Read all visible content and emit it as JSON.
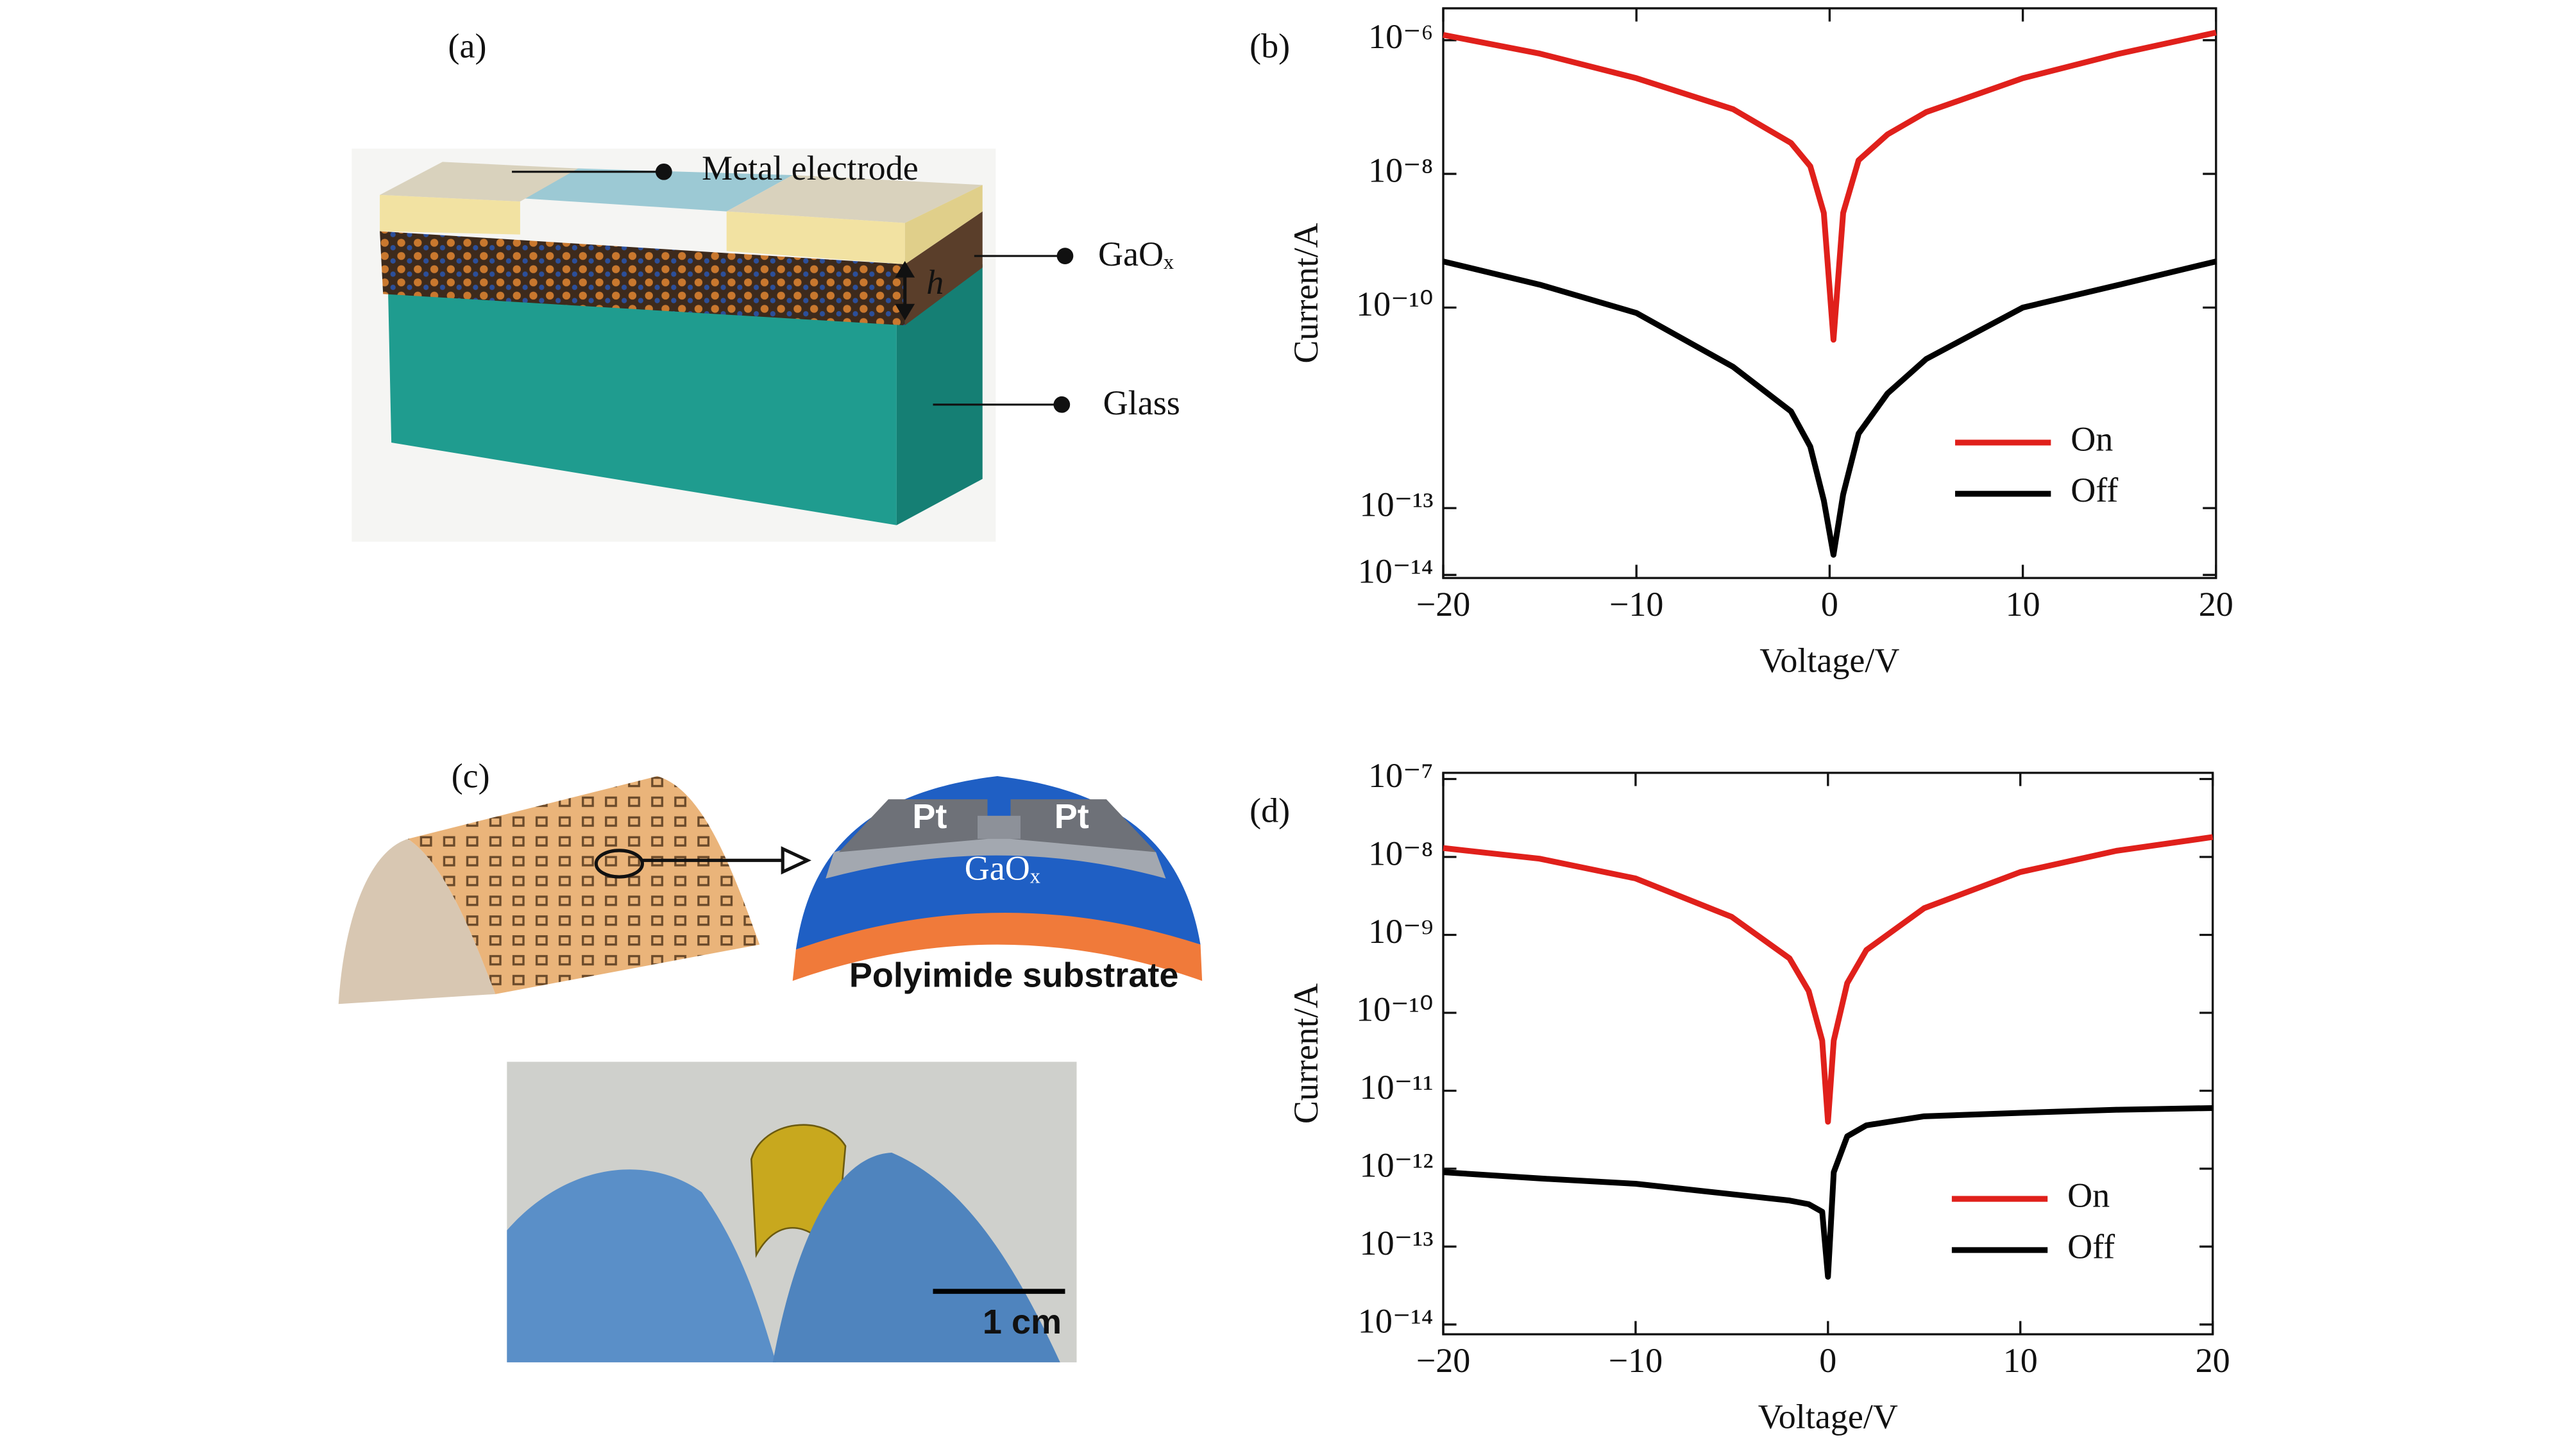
{
  "panels": {
    "a": {
      "label": "(a)",
      "metal_electrode": "Metal electrode",
      "gaox": "GaOₓ",
      "height": "h",
      "glass": "Glass"
    },
    "c": {
      "label": "(c)",
      "pt_left": "Pt",
      "pt_right": "Pt",
      "gaox": "GaOₓ",
      "substrate": "Polyimide substrate",
      "scale_bar": "1 cm"
    }
  },
  "chart_data": [
    {
      "type": "line",
      "title": "(b)",
      "x_label": "Voltage/V",
      "y_label": "Current/A",
      "x": [
        -20,
        -15,
        -10,
        -5,
        -2,
        -1,
        -0.3,
        0.2,
        0.7,
        1.5,
        3,
        5,
        10,
        15,
        20
      ],
      "series": [
        {
          "name": "On",
          "color": "#e0201b",
          "values": [
            1.2e-06,
            6.3e-07,
            2.7e-07,
            9.3e-08,
            2.9e-08,
            1.3e-08,
            2.6e-09,
            3.3e-11,
            2.6e-09,
            1.6e-08,
            3.9e-08,
            8.4e-08,
            2.7e-07,
            6.3e-07,
            1.3e-06
          ]
        },
        {
          "name": "Off",
          "color": "#000000",
          "values": [
            4.9e-10,
            2.2e-10,
            8.3e-11,
            1.3e-11,
            2.8e-12,
            8.3e-13,
            1.3e-13,
            2e-14,
            1.6e-13,
            1.3e-12,
            5.2e-12,
            1.7e-11,
            1e-10,
            2.2e-10,
            4.9e-10
          ]
        }
      ],
      "xlim": [
        -20,
        20
      ],
      "xticks": [
        {
          "value": -20,
          "label": "−20"
        },
        {
          "value": -10,
          "label": "−10"
        },
        0,
        10,
        20
      ],
      "ylim": [
        9e-15,
        3e-06
      ],
      "log_y": true,
      "yticks": [
        {
          "value": 1e-06,
          "label": "10⁻⁶"
        },
        {
          "value": 1e-08,
          "label": "10⁻⁸"
        },
        {
          "value": 1e-10,
          "label": "10⁻¹⁰"
        },
        {
          "value": 1e-13,
          "label": "10⁻¹³"
        },
        {
          "value": 1e-14,
          "label": "10⁻¹⁴"
        }
      ],
      "legend": "lower right"
    },
    {
      "type": "line",
      "title": "(d)",
      "x_label": "Voltage/V",
      "y_label": "Current/A",
      "x": [
        -20,
        -15,
        -10,
        -5,
        -2,
        -1,
        -0.3,
        0,
        0.3,
        1,
        2,
        5,
        10,
        15,
        20
      ],
      "series": [
        {
          "name": "On",
          "color": "#e0201b",
          "values": [
            1.3e-08,
            9.5e-09,
            5.3e-09,
            1.7e-09,
            5e-10,
            1.9e-10,
            4.4e-11,
            4e-12,
            4.4e-11,
            2.4e-10,
            6.4e-10,
            2.2e-09,
            6.4e-09,
            1.2e-08,
            1.8e-08
          ]
        },
        {
          "name": "Off",
          "color": "#000000",
          "values": [
            9e-13,
            7.5e-13,
            6.4e-13,
            4.7e-13,
            3.9e-13,
            3.5e-13,
            2.8e-13,
            4.1e-14,
            9e-13,
            2.6e-12,
            3.6e-12,
            4.7e-12,
            5.2e-12,
            5.7e-12,
            6e-12
          ]
        }
      ],
      "xlim": [
        -20,
        20
      ],
      "xticks": [
        {
          "value": -20,
          "label": "−20"
        },
        {
          "value": -10,
          "label": "−10"
        },
        0,
        10,
        20
      ],
      "ylim": [
        7.5e-15,
        1.2e-07
      ],
      "log_y": true,
      "yticks": [
        {
          "value": 1e-07,
          "label": "10⁻⁷"
        },
        {
          "value": 1e-08,
          "label": "10⁻⁸"
        },
        {
          "value": 1e-09,
          "label": "10⁻⁹"
        },
        {
          "value": 1e-10,
          "label": "10⁻¹⁰"
        },
        {
          "value": 1e-11,
          "label": "10⁻¹¹"
        },
        {
          "value": 1e-12,
          "label": "10⁻¹²"
        },
        {
          "value": 1e-13,
          "label": "10⁻¹³"
        },
        {
          "value": 1e-14,
          "label": "10⁻¹⁴"
        }
      ],
      "legend": "lower right"
    }
  ]
}
